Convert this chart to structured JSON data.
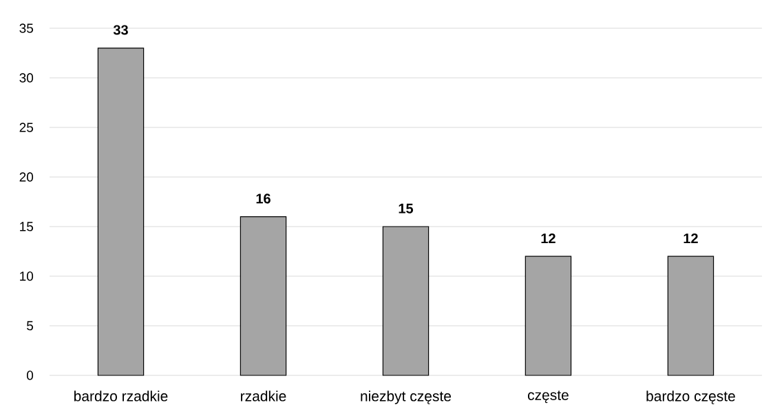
{
  "chart_data": {
    "type": "bar",
    "categories": [
      "bardzo rzadkie",
      "rzadkie",
      "niezbyt częste",
      "częste",
      "bardzo częste"
    ],
    "values": [
      33,
      16,
      15,
      12,
      12
    ],
    "color": "#a5a5a5",
    "ylim": [
      0,
      35
    ],
    "yticks": [
      0,
      5,
      10,
      15,
      20,
      25,
      30,
      35
    ],
    "grid": "y",
    "data_labels": true
  }
}
